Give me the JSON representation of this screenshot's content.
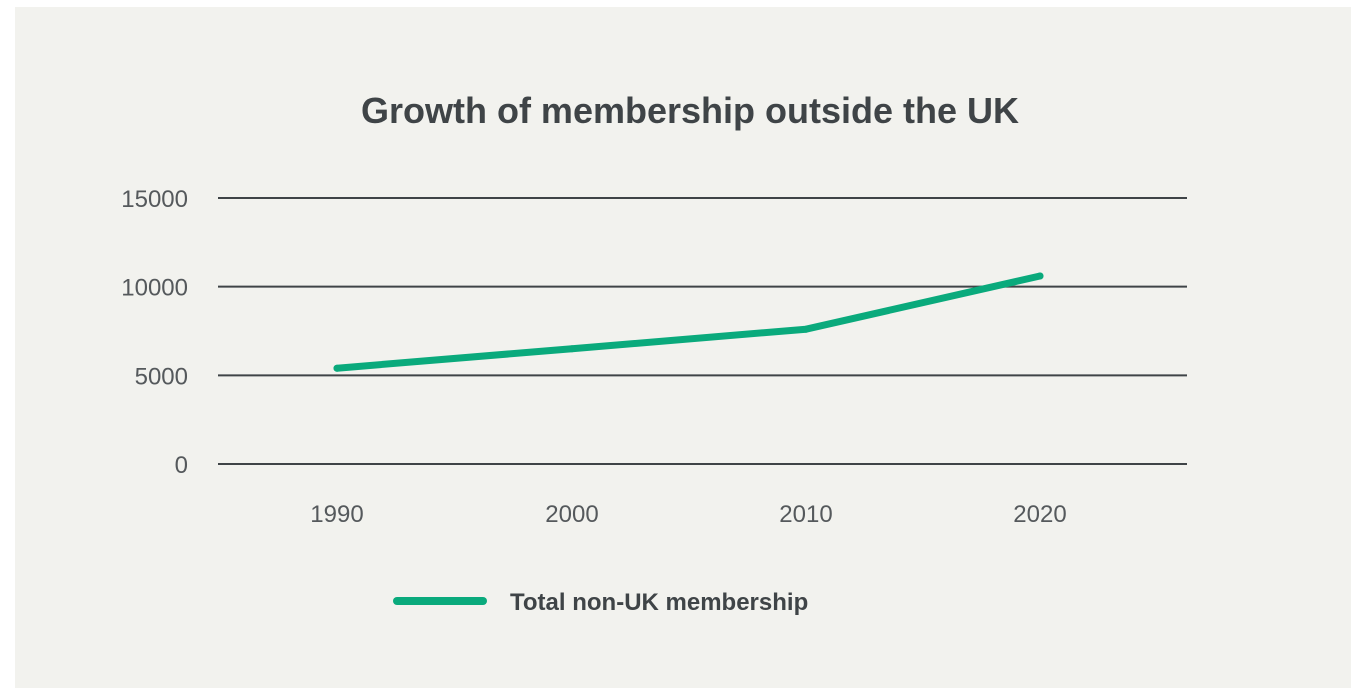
{
  "colors": {
    "background": "#f2f2ee",
    "series": "#0aaa7c",
    "gridline": "#3f4447",
    "text": "#3f4447"
  },
  "chart_data": {
    "type": "line",
    "title": "Growth of membership outside the UK",
    "xlabel": "",
    "ylabel": "",
    "categories": [
      "1990",
      "2000",
      "2010",
      "2020"
    ],
    "y_ticks": [
      "0",
      "5000",
      "10000",
      "15000"
    ],
    "ylim": [
      0,
      15000
    ],
    "grid": true,
    "legend_position": "bottom-center",
    "series": [
      {
        "name": "Total non-UK membership",
        "values": [
          5400,
          6500,
          7600,
          10600
        ],
        "color": "#0aaa7c"
      }
    ]
  }
}
